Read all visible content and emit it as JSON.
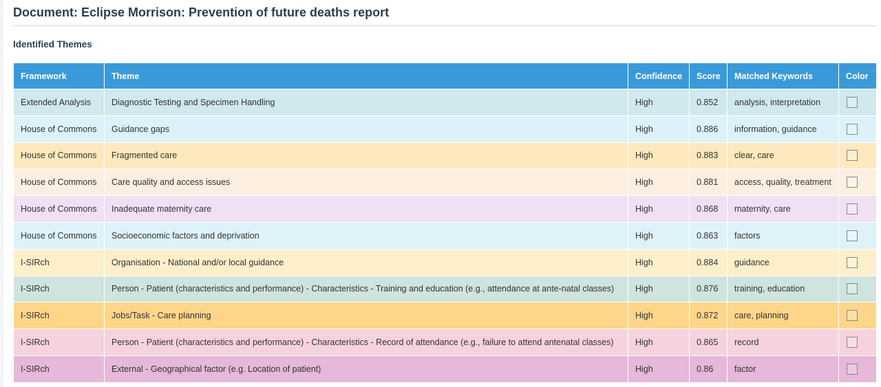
{
  "document": {
    "title": "Document: Eclipse Morrison: Prevention of future deaths report"
  },
  "section": {
    "title": "Identified Themes"
  },
  "colors": {
    "header_bg": "#3a9ad9",
    "header_text": "#ffffff",
    "title_text": "#2c3e50"
  },
  "table": {
    "columns": [
      "Framework",
      "Theme",
      "Confidence",
      "Score",
      "Matched Keywords",
      "Color"
    ],
    "rows": [
      {
        "framework": "Extended Analysis",
        "theme": "Diagnostic Testing and Specimen Handling",
        "confidence": "High",
        "score": "0.852",
        "keywords": "analysis, interpretation",
        "row_color": "#d1e8ee"
      },
      {
        "framework": "House of Commons",
        "theme": "Guidance gaps",
        "confidence": "High",
        "score": "0.886",
        "keywords": "information, guidance",
        "row_color": "#ddf1fb"
      },
      {
        "framework": "House of Commons",
        "theme": "Fragmented care",
        "confidence": "High",
        "score": "0.883",
        "keywords": "clear, care",
        "row_color": "#fde9bd"
      },
      {
        "framework": "House of Commons",
        "theme": "Care quality and access issues",
        "confidence": "High",
        "score": "0.881",
        "keywords": "access, quality, treatment",
        "row_color": "#fdefe0"
      },
      {
        "framework": "House of Commons",
        "theme": "Inadequate maternity care",
        "confidence": "High",
        "score": "0.868",
        "keywords": "maternity, care",
        "row_color": "#f0e0f4"
      },
      {
        "framework": "House of Commons",
        "theme": "Socioeconomic factors and deprivation",
        "confidence": "High",
        "score": "0.863",
        "keywords": "factors",
        "row_color": "#ddf3f9"
      },
      {
        "framework": "I-SIRch",
        "theme": "Organisation - National and/or local guidance",
        "confidence": "High",
        "score": "0.884",
        "keywords": "guidance",
        "row_color": "#fdefc9"
      },
      {
        "framework": "I-SIRch",
        "theme": "Person - Patient (characteristics and performance) - Characteristics - Training and education (e.g., attendance at ante-natal classes)",
        "confidence": "High",
        "score": "0.876",
        "keywords": "training, education",
        "row_color": "#cfe4df"
      },
      {
        "framework": "I-SIRch",
        "theme": "Jobs/Task - Care planning",
        "confidence": "High",
        "score": "0.872",
        "keywords": "care, planning",
        "row_color": "#fed68a"
      },
      {
        "framework": "I-SIRch",
        "theme": "Person - Patient (characteristics and performance) - Characteristics - Record of attendance (e.g., failure to attend antenatal classes)",
        "confidence": "High",
        "score": "0.865",
        "keywords": "record",
        "row_color": "#f6d3dc"
      },
      {
        "framework": "I-SIRch",
        "theme": "External - Geographical factor (e.g. Location of patient)",
        "confidence": "High",
        "score": "0.86",
        "keywords": "factor",
        "row_color": "#e6b8d9"
      }
    ]
  }
}
